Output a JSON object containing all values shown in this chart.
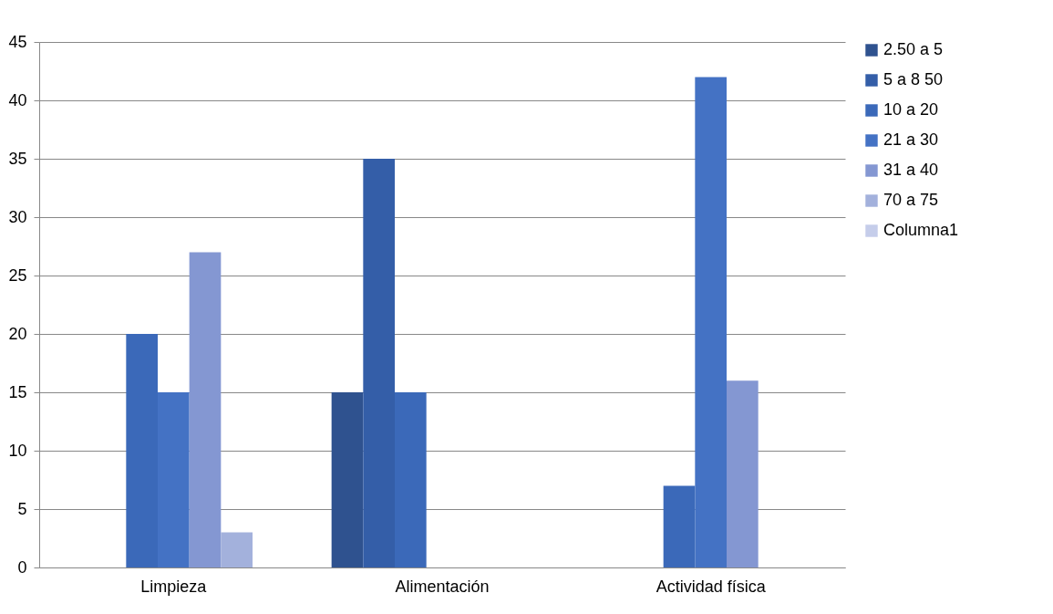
{
  "chart_data": {
    "type": "bar",
    "categories": [
      "Limpieza",
      "Alimentación",
      "Actividad física"
    ],
    "series": [
      {
        "name": "2.50 a 5",
        "color": "#2f528f",
        "values": [
          null,
          15,
          null
        ]
      },
      {
        "name": "5 a 8 50",
        "color": "#345ea8",
        "values": [
          null,
          35,
          null
        ]
      },
      {
        "name": "10 a 20",
        "color": "#3b69b9",
        "values": [
          20,
          15,
          7
        ]
      },
      {
        "name": "21 a 30",
        "color": "#4472c4",
        "values": [
          15,
          null,
          42
        ]
      },
      {
        "name": "31 a 40",
        "color": "#8497d2",
        "values": [
          27,
          null,
          16
        ]
      },
      {
        "name": "70 a 75",
        "color": "#a3b1dc",
        "values": [
          3,
          null,
          null
        ]
      },
      {
        "name": "Columna1",
        "color": "#c5cdea",
        "values": [
          null,
          null,
          null
        ]
      }
    ],
    "ylim": [
      0,
      45
    ],
    "yticks": [
      0,
      5,
      10,
      15,
      20,
      25,
      30,
      35,
      40,
      45
    ],
    "grid": "y",
    "legend": "right"
  }
}
